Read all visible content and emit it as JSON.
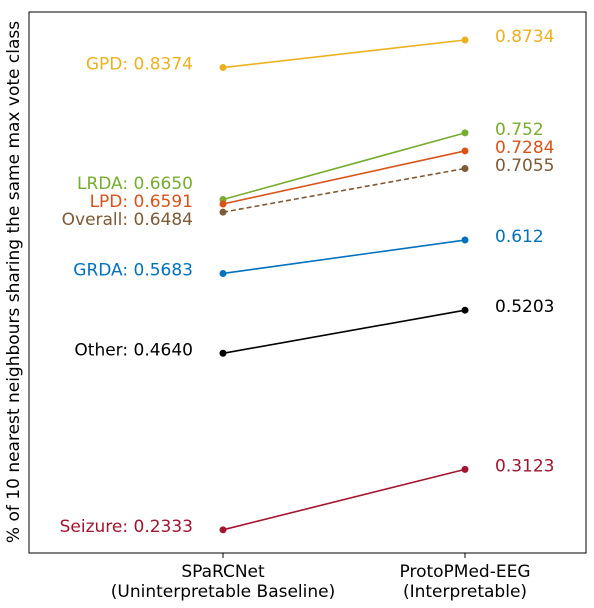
{
  "chart_data": {
    "type": "slope",
    "ylabel": "% of 10 nearest neighbours sharing the same max vote class",
    "categories": [
      "SPaRCNet\n(Uninterpretable Baseline)",
      "ProtoPMed-EEG\n(Interpretable)"
    ],
    "ylim": [
      0.203,
      0.91
    ],
    "series": [
      {
        "color": "#edb120",
        "linestyle": "solid",
        "values": [
          0.8374,
          0.8734
        ],
        "value_labels": [
          "GPD: 0.8374",
          "0.8734"
        ]
      },
      {
        "color": "#77ac30",
        "linestyle": "solid",
        "values": [
          0.665,
          0.752
        ],
        "value_labels": [
          "LRDA: 0.6650",
          "0.752"
        ]
      },
      {
        "color": "#d95319",
        "linestyle": "solid",
        "values": [
          0.6591,
          0.7284
        ],
        "value_labels": [
          "LPD: 0.6591",
          "0.7284"
        ]
      },
      {
        "color": "#7e5a36",
        "linestyle": "dashed",
        "values": [
          0.6484,
          0.7055
        ],
        "value_labels": [
          "Overall: 0.6484",
          "0.7055"
        ]
      },
      {
        "color": "#0072bd",
        "linestyle": "solid",
        "values": [
          0.5683,
          0.612
        ],
        "value_labels": [
          "GRDA: 0.5683",
          "0.612"
        ]
      },
      {
        "color": "#000000",
        "linestyle": "solid",
        "values": [
          0.464,
          0.5203
        ],
        "value_labels": [
          "Other: 0.4640",
          "0.5203"
        ]
      },
      {
        "color": "#a2142f",
        "linestyle": "solid",
        "values": [
          0.2333,
          0.3123
        ],
        "value_labels": [
          "Seizure: 0.2333",
          "0.3123"
        ]
      }
    ]
  }
}
